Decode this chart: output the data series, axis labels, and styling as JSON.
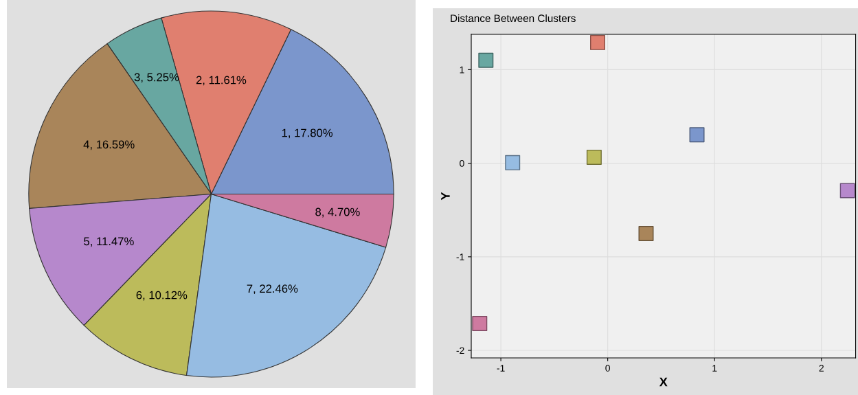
{
  "chart_data": [
    {
      "type": "pie",
      "categories": [
        null,
        null,
        null,
        null,
        null,
        null,
        null,
        null
      ],
      "values": [
        17.8,
        11.61,
        5.25,
        16.59,
        11.47,
        10.12,
        22.46,
        4.7
      ],
      "colors": [
        "#7b96cc",
        "#e07f6f",
        "#68a7a1",
        "#a9855a",
        "#b688cc",
        "#bcbb5b",
        "#96bce2",
        "#ce7aa0"
      ],
      "value_labels": [
        "1, 17.80%",
        "2, 11.61%",
        "3, 5.25%",
        "4, 16.59%",
        "5, 11.47%",
        "6, 10.12%",
        "7, 22.46%",
        "8, 4.70%"
      ]
    },
    {
      "type": "scatter",
      "title": "Distance Between Clusters",
      "xlabel": "X",
      "ylabel": "Y",
      "x": [
        0.835,
        -0.094,
        -1.14,
        0.359,
        2.244,
        -0.127,
        -0.89,
        -1.198
      ],
      "values": [
        0.304,
        1.29,
        1.1,
        -0.751,
        -0.293,
        0.064,
        0.006,
        -1.713
      ],
      "colors": [
        "#7b96cc",
        "#e07f6f",
        "#68a7a1",
        "#a9855a",
        "#b688cc",
        "#bcbb5b",
        "#96bce2",
        "#ce7aa0"
      ],
      "marker": "square",
      "grid": true,
      "xlim": [
        -1.277,
        2.32
      ],
      "ylim": [
        -2.08,
        1.377
      ],
      "xticks": [
        -1,
        0,
        1,
        2
      ],
      "yticks": [
        -2,
        -1,
        0,
        1
      ]
    }
  ]
}
